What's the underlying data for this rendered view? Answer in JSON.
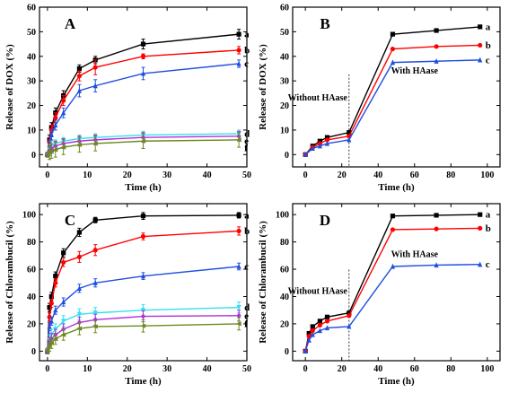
{
  "figure": {
    "series_colors": {
      "a": "#000000",
      "b": "#ff0000",
      "c": "#1f4fe0",
      "d": "#33e0f0",
      "e": "#b030d8",
      "f": "#6a8a1a"
    },
    "extra_colors": {
      "black_series_in_D": "#000000",
      "marker_a_in_D": "#c0307a"
    }
  },
  "chart_data": [
    {
      "panel": "A",
      "type": "line",
      "xlabel": "Time (h)",
      "ylabel": "Release of DOX (%)",
      "xlim": [
        -2,
        50
      ],
      "ylim": [
        -5,
        60
      ],
      "xticks": [
        "0",
        "10",
        "20",
        "30",
        "40",
        "50"
      ],
      "yticks": [
        "0",
        "10",
        "20",
        "30",
        "40",
        "50",
        "60"
      ],
      "x": [
        0,
        0.5,
        1,
        2,
        4,
        8,
        12,
        24,
        48
      ],
      "series": [
        {
          "name": "a",
          "values": [
            0,
            6,
            11,
            17,
            24,
            35,
            38.5,
            45,
            49
          ],
          "errors": [
            1,
            2,
            2,
            2,
            2,
            1.5,
            1.5,
            2,
            2
          ]
        },
        {
          "name": "b",
          "values": [
            0,
            5,
            10,
            15,
            22,
            32,
            35.5,
            40,
            42.5
          ],
          "errors": [
            1,
            2,
            2,
            2,
            2,
            2,
            3,
            1,
            1.5
          ]
        },
        {
          "name": "c",
          "values": [
            0,
            4,
            8,
            12,
            17,
            26,
            28,
            33,
            37
          ],
          "errors": [
            1,
            2,
            2,
            2,
            2,
            2.5,
            2.5,
            2.5,
            1.5
          ]
        },
        {
          "name": "d",
          "values": [
            0,
            2,
            3.5,
            4.5,
            5.5,
            6.5,
            7,
            8,
            8.5
          ],
          "errors": [
            1,
            2,
            2,
            1.5,
            1.5,
            1.5,
            1.5,
            1.5,
            1.5
          ]
        },
        {
          "name": "e",
          "values": [
            0,
            1.5,
            2.5,
            3.5,
            4.5,
            5.5,
            6,
            7,
            7.5
          ],
          "errors": [
            1,
            2,
            2,
            2,
            2,
            2,
            2,
            2,
            2
          ]
        },
        {
          "name": "f",
          "values": [
            0,
            1,
            1.5,
            2,
            3,
            4,
            4.5,
            5.5,
            6
          ],
          "errors": [
            1,
            3,
            3,
            3,
            3,
            3,
            3,
            3,
            3
          ]
        }
      ]
    },
    {
      "panel": "B",
      "type": "line",
      "xlabel": "Time (h)",
      "ylabel": "Release of DOX (%)",
      "xlim": [
        -7,
        107
      ],
      "ylim": [
        -5,
        60
      ],
      "xticks": [
        "0",
        "20",
        "40",
        "60",
        "80",
        "100"
      ],
      "yticks": [
        "0",
        "10",
        "20",
        "30",
        "40",
        "50",
        "60"
      ],
      "annotations": [
        "Without HAase",
        "With HAase"
      ],
      "divider_x": 24,
      "x": [
        0,
        4,
        8,
        12,
        24,
        48,
        72,
        96
      ],
      "series": [
        {
          "name": "a",
          "values": [
            0,
            3.5,
            5.5,
            7,
            9,
            49,
            50.5,
            52
          ]
        },
        {
          "name": "b",
          "values": [
            0,
            3,
            4.5,
            6,
            7.5,
            43,
            44,
            44.5
          ]
        },
        {
          "name": "c",
          "values": [
            0,
            2.5,
            3.5,
            4.5,
            6,
            37.5,
            38,
            38.5
          ]
        }
      ]
    },
    {
      "panel": "C",
      "type": "line",
      "xlabel": "Time (h)",
      "ylabel": "Release of Chlorambucil (%)",
      "xlim": [
        -2,
        50
      ],
      "ylim": [
        -7,
        108
      ],
      "xticks": [
        "0",
        "10",
        "20",
        "30",
        "40",
        "50"
      ],
      "yticks": [
        "0",
        "20",
        "40",
        "60",
        "80",
        "100"
      ],
      "x": [
        0,
        0.5,
        1,
        2,
        4,
        8,
        12,
        24,
        48
      ],
      "series": [
        {
          "name": "a",
          "values": [
            0,
            32,
            40,
            55,
            72,
            87,
            96,
            99,
            99.5
          ],
          "errors": [
            2,
            3,
            3,
            3,
            3,
            3,
            2,
            2.5,
            2
          ]
        },
        {
          "name": "b",
          "values": [
            0,
            25,
            35,
            50,
            65,
            69,
            74,
            84,
            88
          ],
          "errors": [
            2,
            3,
            3,
            3,
            3,
            4,
            4,
            2.5,
            3
          ]
        },
        {
          "name": "c",
          "values": [
            0,
            18,
            22,
            30,
            36,
            46,
            50,
            55,
            62
          ],
          "errors": [
            2,
            3,
            3,
            3,
            3,
            3,
            3,
            2.5,
            2.5
          ]
        },
        {
          "name": "d",
          "values": [
            0,
            8,
            12,
            16,
            22,
            27,
            28,
            30,
            32
          ],
          "errors": [
            2,
            4,
            4,
            4,
            4,
            4,
            4,
            4,
            4
          ]
        },
        {
          "name": "e",
          "values": [
            0,
            6,
            9,
            12,
            16,
            21,
            23,
            25.5,
            26
          ],
          "errors": [
            2,
            4,
            4,
            4,
            4,
            4,
            4,
            4,
            4
          ]
        },
        {
          "name": "f",
          "values": [
            0,
            4,
            6,
            9,
            12,
            16.5,
            18,
            18.5,
            20
          ],
          "errors": [
            2,
            4,
            4,
            4,
            4,
            4.5,
            4.5,
            4.5,
            4.5
          ]
        }
      ]
    },
    {
      "panel": "D",
      "type": "line",
      "xlabel": "Time (h)",
      "ylabel": "Release of Chlorambucil (%)",
      "xlim": [
        -7,
        107
      ],
      "ylim": [
        -7,
        108
      ],
      "xticks": [
        "0",
        "20",
        "40",
        "60",
        "80",
        "100"
      ],
      "yticks": [
        "0",
        "20",
        "40",
        "60",
        "80",
        "100"
      ],
      "annotations": [
        "Without HAase",
        "With HAase"
      ],
      "divider_x": 24,
      "x": [
        0,
        2,
        4,
        8,
        12,
        24,
        48,
        72,
        96
      ],
      "series": [
        {
          "name": "a",
          "values": [
            0,
            13,
            18,
            22,
            25,
            28,
            99,
            99.5,
            100
          ]
        },
        {
          "name": "b",
          "values": [
            0,
            11,
            15,
            19,
            22,
            26,
            89,
            89.5,
            90
          ]
        },
        {
          "name": "c",
          "values": [
            0,
            8,
            12,
            15,
            17,
            18,
            62,
            63,
            63.5
          ]
        }
      ]
    }
  ]
}
